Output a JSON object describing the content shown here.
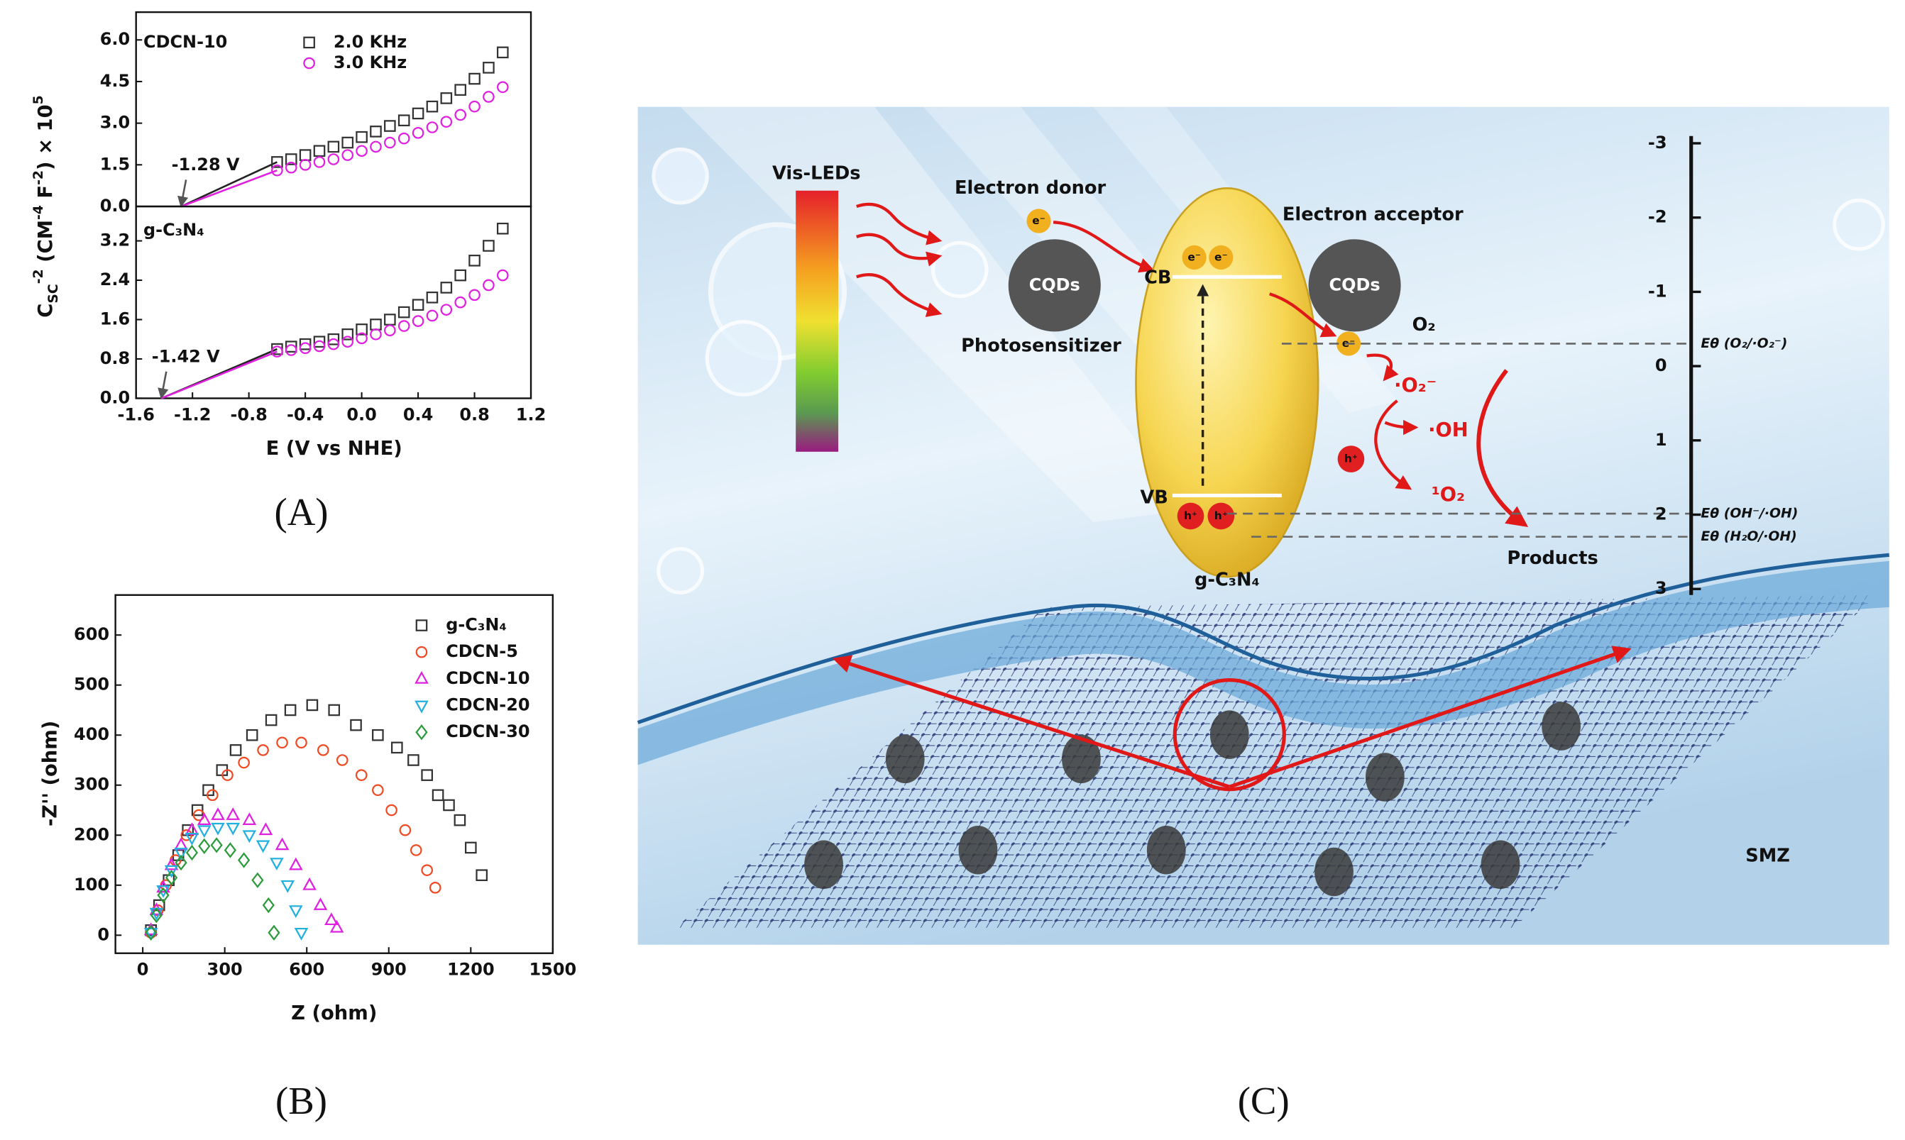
{
  "chart_data": [
    {
      "type": "scatter",
      "label": "CDCN-10",
      "y_label": [
        "C",
        "SC",
        "-2",
        " (CM",
        "-4",
        " F",
        "-2",
        ") × 10",
        "5"
      ],
      "xlim": [
        -1.6,
        1.2
      ],
      "ylim": [
        0,
        7.0
      ],
      "yticks": [
        {
          "value": 0,
          "label": "0.0"
        },
        1.5,
        {
          "value": 3,
          "label": "3.0"
        },
        4.5,
        {
          "value": 6,
          "label": "6.0"
        }
      ],
      "legend": "upper center",
      "series": [
        {
          "name": "2.0 KHz",
          "color": "#333333",
          "marker": "square",
          "x": [
            -0.6,
            -0.5,
            -0.4,
            -0.3,
            -0.2,
            -0.1,
            0,
            0.1,
            0.2,
            0.3,
            0.4,
            0.5,
            0.6,
            0.7,
            0.8,
            0.9,
            1.0
          ],
          "values": [
            1.6,
            1.7,
            1.85,
            2.0,
            2.15,
            2.3,
            2.5,
            2.7,
            2.9,
            3.1,
            3.35,
            3.6,
            3.9,
            4.2,
            4.6,
            5.0,
            5.55
          ]
        },
        {
          "name": "3.0 KHz",
          "color": "#e020e0",
          "marker": "circle",
          "x": [
            -0.6,
            -0.5,
            -0.4,
            -0.3,
            -0.2,
            -0.1,
            0,
            0.1,
            0.2,
            0.3,
            0.4,
            0.5,
            0.6,
            0.7,
            0.8,
            0.9,
            1.0
          ],
          "values": [
            1.3,
            1.4,
            1.5,
            1.6,
            1.7,
            1.85,
            2.0,
            2.15,
            2.3,
            2.45,
            2.65,
            2.85,
            3.05,
            3.3,
            3.6,
            3.95,
            4.3
          ]
        }
      ],
      "lines": [
        {
          "color": "#222222",
          "x": [
            -1.28,
            -0.6
          ],
          "y": [
            0,
            1.6
          ]
        },
        {
          "color": "#e020e0",
          "x": [
            -1.28,
            -0.6
          ],
          "y": [
            0,
            1.3
          ]
        }
      ],
      "annotations": [
        {
          "text": "-1.28 V",
          "x": -1.28,
          "y": 0
        }
      ]
    },
    {
      "type": "scatter",
      "label": "g-C₃N₄",
      "x_label": "E (V vs NHE)",
      "xlim": [
        -1.6,
        1.2
      ],
      "ylim": [
        0,
        3.9
      ],
      "xticks": [
        -1.6,
        -1.2,
        -0.8,
        -0.4,
        {
          "value": 0,
          "label": "0.0"
        },
        0.4,
        0.8,
        1.2
      ],
      "yticks": [
        {
          "value": 0,
          "label": "0.0"
        },
        0.8,
        1.6,
        2.4,
        3.2
      ],
      "series": [
        {
          "color": "#333333",
          "marker": "square",
          "x": [
            -0.6,
            -0.5,
            -0.4,
            -0.3,
            -0.2,
            -0.1,
            0,
            0.1,
            0.2,
            0.3,
            0.4,
            0.5,
            0.6,
            0.7,
            0.8,
            0.9,
            1.0
          ],
          "values": [
            1.0,
            1.05,
            1.1,
            1.15,
            1.2,
            1.3,
            1.4,
            1.5,
            1.6,
            1.75,
            1.9,
            2.05,
            2.25,
            2.5,
            2.8,
            3.1,
            3.45
          ]
        },
        {
          "color": "#e020e0",
          "marker": "circle",
          "x": [
            -0.6,
            -0.5,
            -0.4,
            -0.3,
            -0.2,
            -0.1,
            0,
            0.1,
            0.2,
            0.3,
            0.4,
            0.5,
            0.6,
            0.7,
            0.8,
            0.9,
            1.0
          ],
          "values": [
            0.95,
            0.98,
            1.02,
            1.06,
            1.1,
            1.15,
            1.22,
            1.3,
            1.38,
            1.47,
            1.57,
            1.68,
            1.8,
            1.95,
            2.1,
            2.3,
            2.5
          ]
        }
      ],
      "lines": [
        {
          "color": "#222222",
          "x": [
            -1.42,
            -0.6
          ],
          "y": [
            0,
            1.0
          ]
        },
        {
          "color": "#e020e0",
          "x": [
            -1.42,
            -0.6
          ],
          "y": [
            0,
            0.95
          ]
        }
      ],
      "annotations": [
        {
          "text": "-1.42 V",
          "x": -1.42,
          "y": 0
        }
      ]
    },
    {
      "type": "scatter",
      "x_label": "Z (ohm)",
      "y_label": "-Z'' (ohm)",
      "xlim": [
        -100,
        1500
      ],
      "ylim": [
        -36,
        680
      ],
      "xticks": [
        0,
        300,
        600,
        900,
        1200,
        1500
      ],
      "yticks": [
        0,
        100,
        200,
        300,
        400,
        500,
        600
      ],
      "legend": "upper right",
      "series": [
        {
          "name": "g-C₃N₄",
          "color": "#333333",
          "marker": "square",
          "x": [
            30,
            60,
            95,
            130,
            165,
            200,
            240,
            290,
            340,
            400,
            470,
            540,
            620,
            700,
            780,
            860,
            930,
            990,
            1040,
            1080,
            1120,
            1160,
            1200,
            1240
          ],
          "values": [
            10,
            60,
            110,
            160,
            210,
            250,
            290,
            330,
            370,
            400,
            430,
            450,
            460,
            450,
            420,
            400,
            375,
            350,
            320,
            280,
            260,
            230,
            175,
            120
          ]
        },
        {
          "name": "CDCN-5",
          "color": "#f04a24",
          "marker": "circle",
          "x": [
            30,
            55,
            85,
            120,
            160,
            205,
            255,
            310,
            370,
            440,
            510,
            580,
            660,
            730,
            800,
            860,
            910,
            960,
            1000,
            1040,
            1070
          ],
          "values": [
            5,
            50,
            100,
            150,
            200,
            240,
            280,
            320,
            345,
            370,
            385,
            385,
            370,
            350,
            320,
            290,
            250,
            210,
            170,
            130,
            95
          ]
        },
        {
          "name": "CDCN-10",
          "color": "#e020e0",
          "marker": "triangle",
          "x": [
            30,
            50,
            75,
            105,
            140,
            180,
            225,
            275,
            330,
            390,
            450,
            510,
            560,
            610,
            650,
            690,
            710
          ],
          "values": [
            10,
            50,
            95,
            140,
            180,
            210,
            230,
            240,
            240,
            230,
            210,
            180,
            140,
            100,
            60,
            30,
            15
          ]
        },
        {
          "name": "CDCN-20",
          "color": "#20b0e0",
          "marker": "triangle-down",
          "x": [
            30,
            50,
            75,
            105,
            140,
            180,
            225,
            275,
            330,
            390,
            440,
            490,
            530,
            560,
            580
          ],
          "values": [
            5,
            45,
            90,
            130,
            165,
            195,
            210,
            215,
            215,
            200,
            180,
            145,
            100,
            50,
            5
          ]
        },
        {
          "name": "CDCN-30",
          "color": "#2a9a3a",
          "marker": "diamond",
          "x": [
            30,
            50,
            75,
            105,
            140,
            180,
            225,
            270,
            320,
            370,
            420,
            460,
            480
          ],
          "values": [
            5,
            40,
            80,
            115,
            145,
            165,
            178,
            180,
            170,
            150,
            110,
            60,
            5
          ]
        }
      ]
    }
  ],
  "panels": [
    "(A)",
    "(B)",
    "(C)"
  ],
  "diagram": {
    "light_source": "Vis-LEDs",
    "donor": "Electron donor",
    "cqds": [
      "CQDs",
      "CQDs"
    ],
    "photosensitizer": "Photosensitizer",
    "cb": "CB",
    "vb": "VB",
    "electrons": [
      "e⁻",
      "e⁻",
      "e⁻",
      "e⁻"
    ],
    "holes": [
      "h⁺",
      "h⁺",
      "h⁺"
    ],
    "acceptor": "Electron acceptor",
    "o2": "O₂",
    "superoxide": "·O₂⁻",
    "hydroxyl": "·OH",
    "singlet_oxygen": "¹O₂",
    "products": "Products",
    "semiconductor": "g-C₃N₄",
    "pollutant": "SMZ",
    "potentials": [
      "Eθ (O₂/·O₂⁻)",
      "Eθ (OH⁻/·OH)",
      "Eθ (H₂O/·OH)"
    ],
    "energy_ticks": [
      -3,
      -2,
      -1,
      0,
      1,
      2,
      3
    ]
  }
}
